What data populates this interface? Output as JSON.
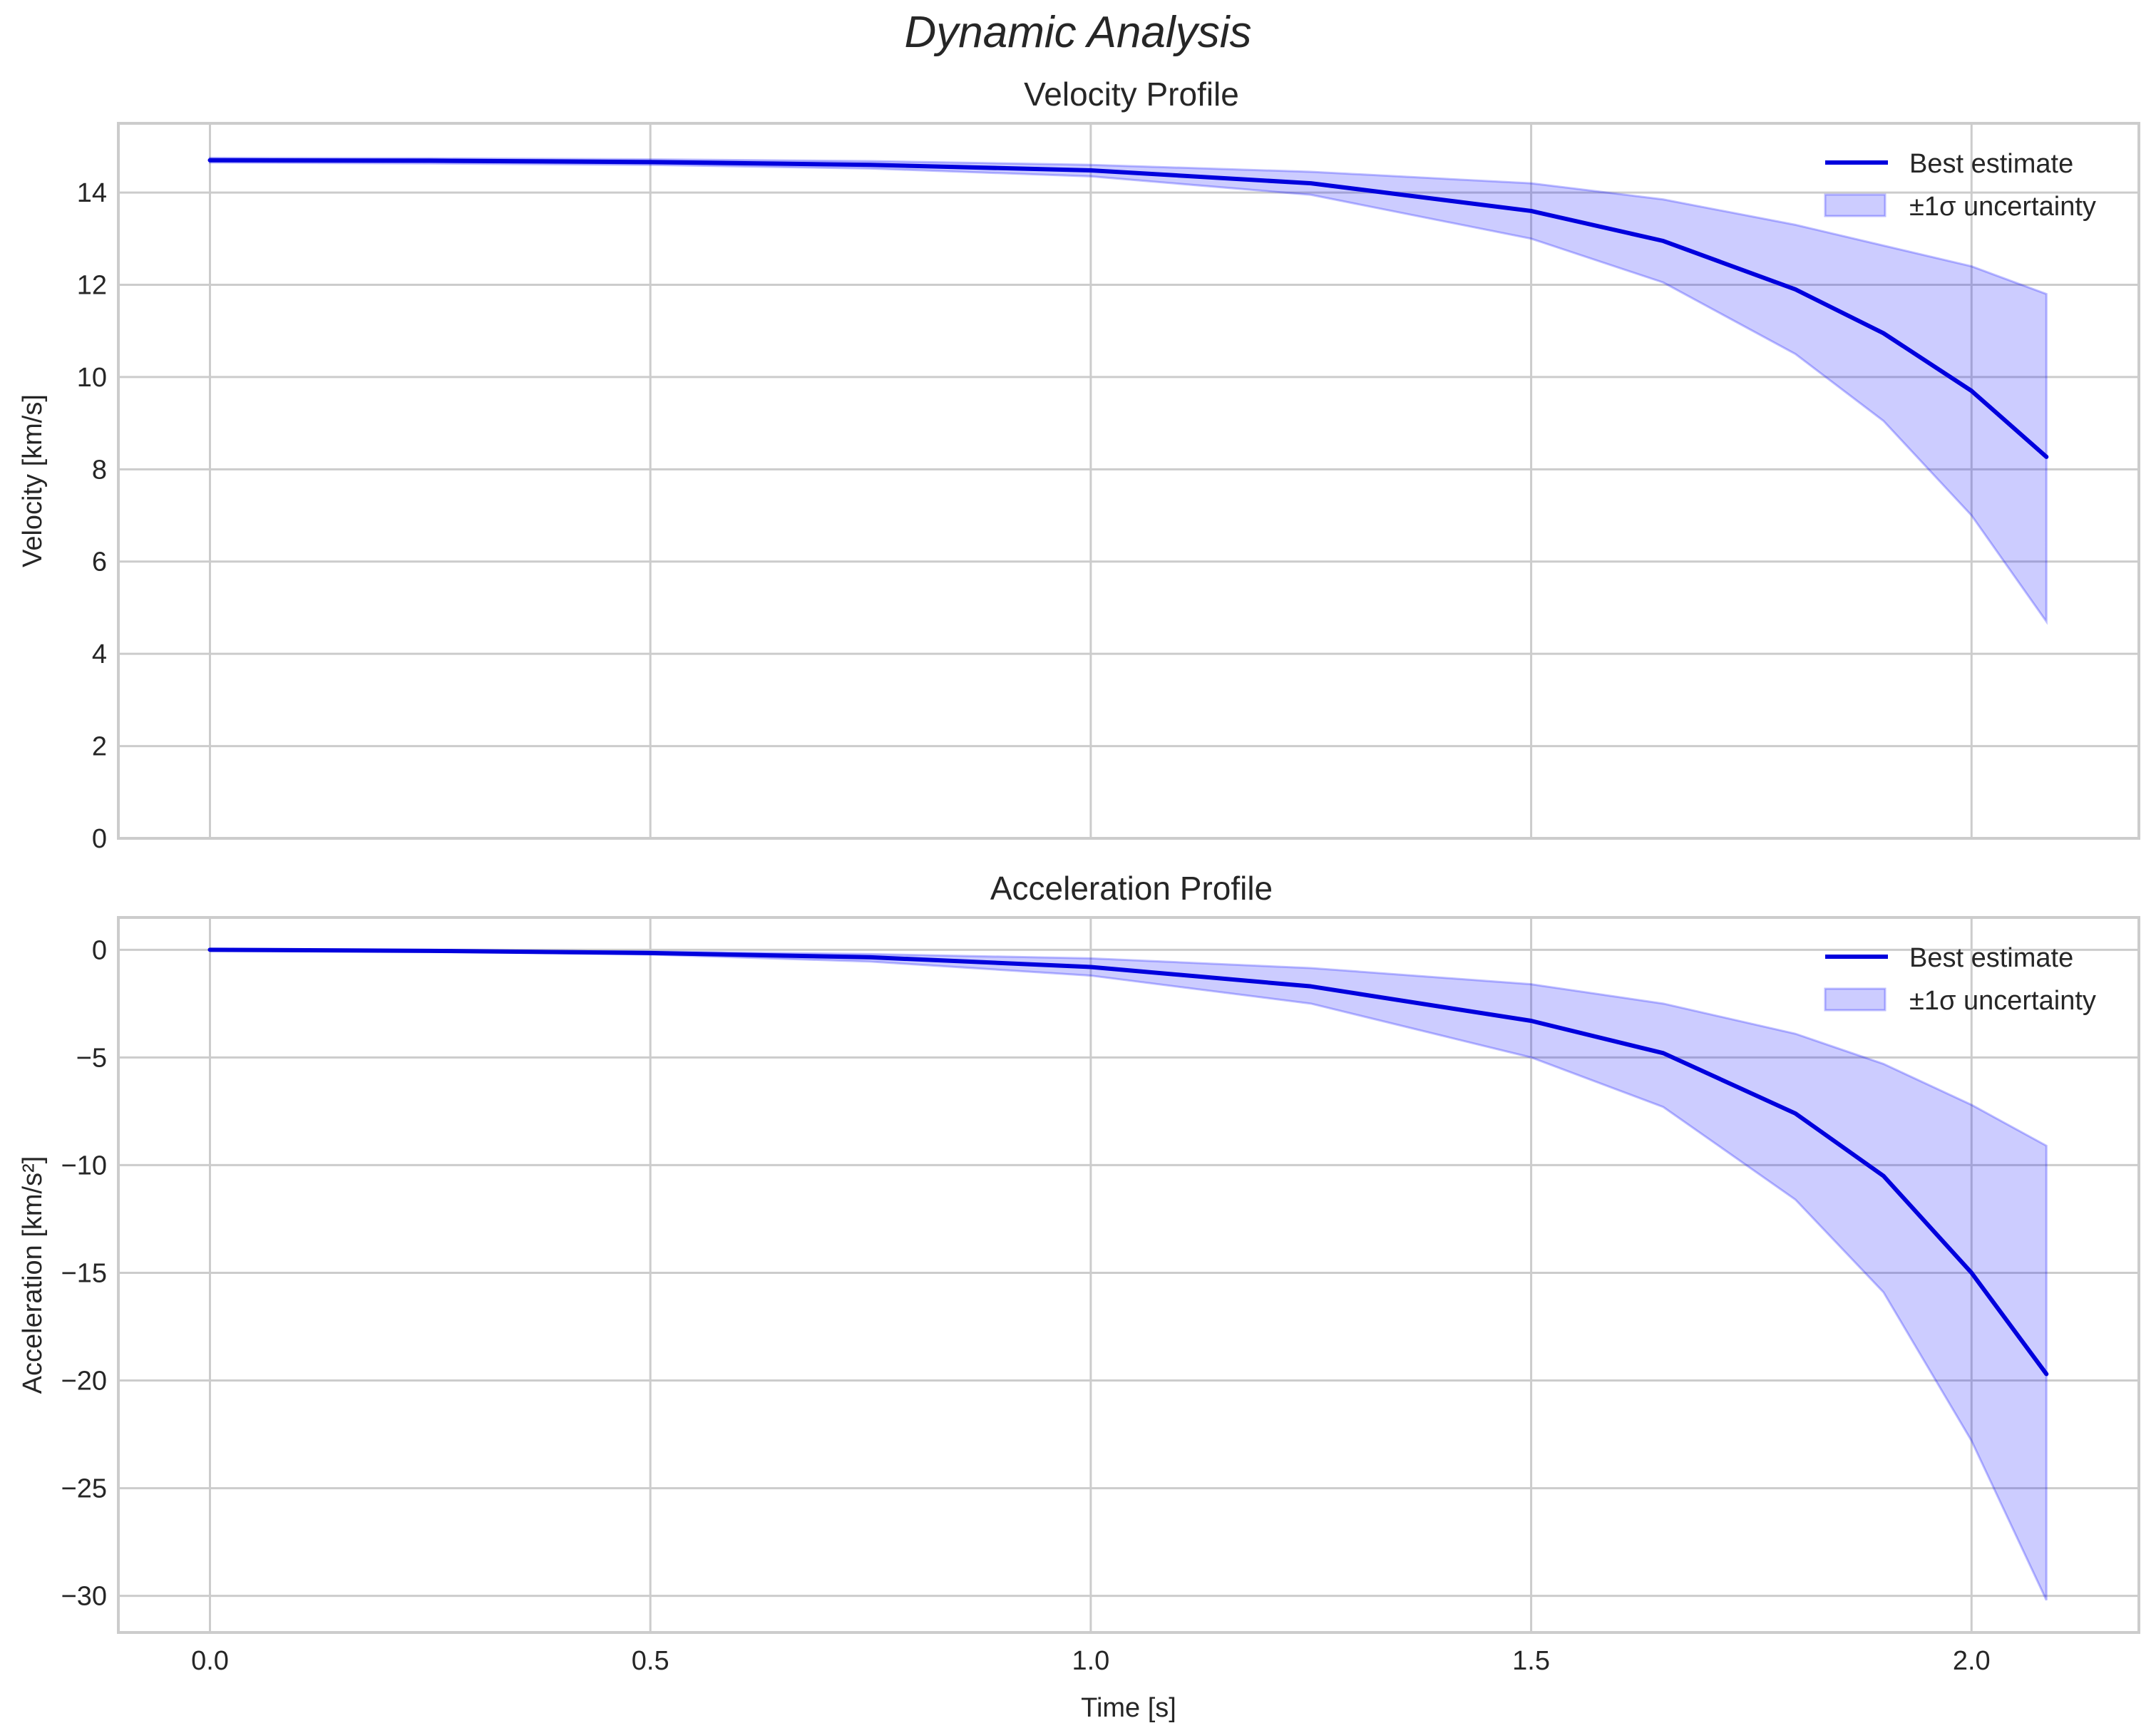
{
  "figure": {
    "suptitle": "Dynamic Analysis"
  },
  "colors": {
    "line": "#0000dd",
    "band": "#0000ff",
    "band_alpha": 0.2,
    "grid": "#cccccc",
    "text": "#262626"
  },
  "chart_data": [
    {
      "type": "line",
      "title": "Velocity Profile",
      "xlabel": "",
      "ylabel": "Velocity [km/s]",
      "xlim": [
        -0.104,
        2.19
      ],
      "ylim": [
        0,
        15.5
      ],
      "xticks": [
        0.0,
        0.5,
        1.0,
        1.5,
        2.0
      ],
      "xtick_labels": [
        "",
        "",
        "",
        "",
        ""
      ],
      "yticks": [
        0,
        2,
        4,
        6,
        8,
        10,
        12,
        14
      ],
      "ytick_labels": [
        "0",
        "2",
        "4",
        "6",
        "8",
        "10",
        "12",
        "14"
      ],
      "grid": true,
      "legend": {
        "position": "upper right",
        "entries": [
          "Best estimate",
          "±1σ uncertainty"
        ]
      },
      "x": [
        0.0,
        0.25,
        0.5,
        0.75,
        1.0,
        1.25,
        1.5,
        1.65,
        1.8,
        1.9,
        2.0,
        2.085
      ],
      "series": [
        {
          "name": "Best estimate",
          "values": [
            14.7,
            14.69,
            14.66,
            14.6,
            14.48,
            14.2,
            13.6,
            12.95,
            11.9,
            10.95,
            9.7,
            8.27
          ]
        },
        {
          "name": "±1σ upper",
          "values": [
            14.75,
            14.74,
            14.72,
            14.68,
            14.6,
            14.45,
            14.2,
            13.85,
            13.3,
            12.85,
            12.4,
            11.8
          ]
        },
        {
          "name": "±1σ lower",
          "values": [
            14.65,
            14.63,
            14.6,
            14.52,
            14.35,
            13.95,
            13.0,
            12.05,
            10.5,
            9.05,
            7.0,
            4.7
          ]
        }
      ]
    },
    {
      "type": "line",
      "title": "Acceleration Profile",
      "xlabel": "Time [s]",
      "ylabel": "Acceleration [km/s²]",
      "xlim": [
        -0.104,
        2.19
      ],
      "ylim": [
        -31.7,
        1.5
      ],
      "xticks": [
        0.0,
        0.5,
        1.0,
        1.5,
        2.0
      ],
      "xtick_labels": [
        "0.0",
        "0.5",
        "1.0",
        "1.5",
        "2.0"
      ],
      "yticks": [
        0,
        -5,
        -10,
        -15,
        -20,
        -25,
        -30
      ],
      "ytick_labels": [
        "0",
        "−5",
        "−10",
        "−15",
        "−20",
        "−25",
        "−30"
      ],
      "grid": true,
      "legend": {
        "position": "upper right",
        "entries": [
          "Best estimate",
          "±1σ uncertainty"
        ]
      },
      "x": [
        0.0,
        0.25,
        0.5,
        0.75,
        1.0,
        1.25,
        1.5,
        1.65,
        1.8,
        1.9,
        2.0,
        2.085
      ],
      "series": [
        {
          "name": "Best estimate",
          "values": [
            0.0,
            -0.05,
            -0.15,
            -0.35,
            -0.8,
            -1.7,
            -3.3,
            -4.8,
            -7.6,
            -10.5,
            -15.0,
            -19.7
          ]
        },
        {
          "name": "±1σ upper",
          "values": [
            0.0,
            -0.03,
            -0.08,
            -0.2,
            -0.4,
            -0.85,
            -1.6,
            -2.5,
            -3.9,
            -5.3,
            -7.2,
            -9.1
          ]
        },
        {
          "name": "±1σ lower",
          "values": [
            0.0,
            -0.07,
            -0.22,
            -0.55,
            -1.2,
            -2.5,
            -5.0,
            -7.3,
            -11.6,
            -15.9,
            -22.8,
            -30.2
          ]
        }
      ]
    }
  ]
}
